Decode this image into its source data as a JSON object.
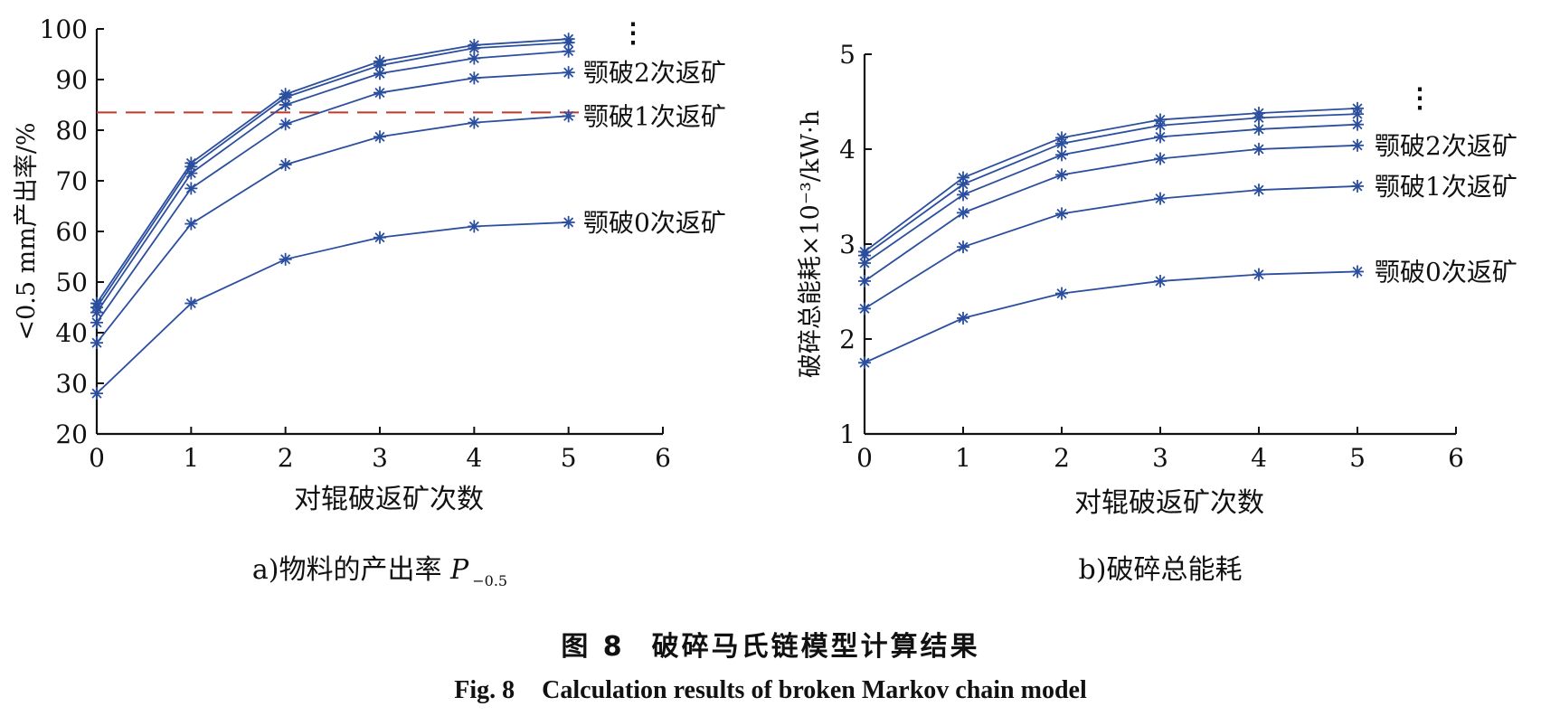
{
  "chart_data": [
    {
      "type": "line",
      "subcaption_prefix": "a)物料的产出率 ",
      "subcaption_var": "P",
      "subcaption_sub": "−0.5",
      "xlabel": "对辊破返矿次数",
      "ylabel": "<0.5 mm产出率/%",
      "xlim": [
        0,
        6
      ],
      "ylim": [
        20,
        100
      ],
      "xticks": [
        "0",
        "1",
        "2",
        "3",
        "4",
        "5",
        "6"
      ],
      "yticks": [
        "20",
        "30",
        "40",
        "50",
        "60",
        "70",
        "80",
        "90",
        "100"
      ],
      "x": [
        0,
        1,
        2,
        3,
        4,
        5
      ],
      "series": [
        {
          "values": [
            28.0,
            45.8,
            54.5,
            58.8,
            61.0,
            61.8
          ]
        },
        {
          "values": [
            38.0,
            61.5,
            73.2,
            78.7,
            81.5,
            82.8
          ]
        },
        {
          "values": [
            42.0,
            68.5,
            81.2,
            87.4,
            90.3,
            91.4
          ]
        },
        {
          "values": [
            44.0,
            71.5,
            85.0,
            91.2,
            94.2,
            95.6
          ]
        },
        {
          "values": [
            45.0,
            72.8,
            86.5,
            92.8,
            96.2,
            97.3
          ]
        },
        {
          "values": [
            45.8,
            73.5,
            87.1,
            93.6,
            96.8,
            98.0
          ]
        }
      ],
      "reference_line": {
        "y": 83.5,
        "color": "#c0392b",
        "style": "dashed"
      },
      "annotations": [
        {
          "text": "颚破2次返矿",
          "y": 91.4
        },
        {
          "text": "颚破1次返矿",
          "y": 82.8
        },
        {
          "text": "颚破0次返矿",
          "y": 61.8
        },
        {
          "text": "⋮",
          "y": 98.5
        }
      ],
      "line_color": "#2b4f9e"
    },
    {
      "type": "line",
      "subcaption_prefix": "b)破碎总能耗",
      "subcaption_var": "",
      "subcaption_sub": "",
      "xlabel": "对辊破返矿次数",
      "ylabel": "破碎总能耗×10⁻³/kW·h",
      "xlim": [
        0,
        6
      ],
      "ylim": [
        1,
        5
      ],
      "xticks": [
        "0",
        "1",
        "2",
        "3",
        "4",
        "5",
        "6"
      ],
      "yticks": [
        "1",
        "2",
        "3",
        "4",
        "5"
      ],
      "x": [
        0,
        1,
        2,
        3,
        4,
        5
      ],
      "series": [
        {
          "values": [
            1.75,
            2.22,
            2.48,
            2.61,
            2.68,
            2.71
          ]
        },
        {
          "values": [
            2.32,
            2.97,
            3.32,
            3.48,
            3.57,
            3.61
          ]
        },
        {
          "values": [
            2.61,
            3.33,
            3.73,
            3.9,
            4.0,
            4.04
          ]
        },
        {
          "values": [
            2.8,
            3.52,
            3.94,
            4.13,
            4.21,
            4.26
          ]
        },
        {
          "values": [
            2.88,
            3.63,
            4.06,
            4.25,
            4.33,
            4.37
          ]
        },
        {
          "values": [
            2.92,
            3.7,
            4.12,
            4.31,
            4.38,
            4.43
          ]
        }
      ],
      "annotations": [
        {
          "text": "颚破2次返矿",
          "y": 4.04
        },
        {
          "text": "颚破1次返矿",
          "y": 3.61
        },
        {
          "text": "颚破0次返矿",
          "y": 2.71
        },
        {
          "text": "⋮",
          "y": 4.5
        }
      ],
      "line_color": "#2b4f9e"
    }
  ],
  "caption": {
    "cn_label": "图 8",
    "cn_text": "破碎马氏链模型计算结果",
    "en_label": "Fig. 8",
    "en_text": "Calculation results of broken Markov chain model"
  }
}
